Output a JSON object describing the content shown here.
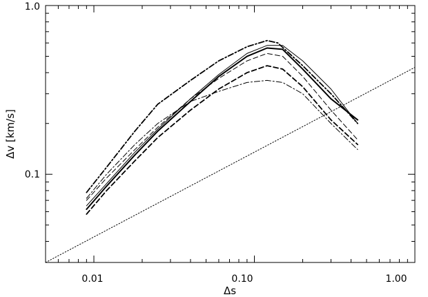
{
  "chart_data": {
    "type": "line",
    "title": "",
    "xlabel": "Δs",
    "ylabel": "Δv [km/s]",
    "xscale": "log",
    "yscale": "log",
    "xlim": [
      0.005,
      1.0
    ],
    "ylim": [
      0.03,
      1.0
    ],
    "x_tick_labels": [
      "0.01",
      "0.10",
      "1.00"
    ],
    "y_tick_labels": [
      "0.1",
      "1.0"
    ],
    "grid": false,
    "legend": "none",
    "series": [
      {
        "style": "solid",
        "width": 2.0,
        "x": [
          0.009,
          0.012,
          0.018,
          0.025,
          0.04,
          0.06,
          0.09,
          0.12,
          0.15,
          0.2,
          0.3,
          0.44
        ],
        "y": [
          0.062,
          0.085,
          0.13,
          0.18,
          0.27,
          0.38,
          0.5,
          0.56,
          0.55,
          0.42,
          0.28,
          0.21
        ]
      },
      {
        "style": "solid",
        "width": 1.0,
        "x": [
          0.009,
          0.012,
          0.018,
          0.025,
          0.04,
          0.06,
          0.09,
          0.12,
          0.15,
          0.2,
          0.3,
          0.44
        ],
        "y": [
          0.065,
          0.088,
          0.135,
          0.185,
          0.28,
          0.39,
          0.52,
          0.58,
          0.58,
          0.47,
          0.32,
          0.2
        ]
      },
      {
        "style": "dashdot",
        "width": 1.8,
        "x": [
          0.009,
          0.012,
          0.018,
          0.025,
          0.04,
          0.06,
          0.09,
          0.12,
          0.14,
          0.2,
          0.3,
          0.44
        ],
        "y": [
          0.078,
          0.11,
          0.18,
          0.26,
          0.36,
          0.47,
          0.57,
          0.62,
          0.6,
          0.44,
          0.3,
          0.2
        ]
      },
      {
        "style": "dashed",
        "width": 1.8,
        "x": [
          0.009,
          0.012,
          0.018,
          0.025,
          0.04,
          0.06,
          0.09,
          0.12,
          0.15,
          0.2,
          0.3,
          0.44
        ],
        "y": [
          0.058,
          0.08,
          0.12,
          0.165,
          0.24,
          0.32,
          0.4,
          0.44,
          0.42,
          0.33,
          0.21,
          0.15
        ]
      },
      {
        "style": "dashed",
        "width": 1.0,
        "x": [
          0.009,
          0.012,
          0.018,
          0.025,
          0.04,
          0.06,
          0.09,
          0.12,
          0.15,
          0.2,
          0.3,
          0.44
        ],
        "y": [
          0.07,
          0.095,
          0.14,
          0.19,
          0.28,
          0.37,
          0.47,
          0.52,
          0.5,
          0.38,
          0.24,
          0.16
        ]
      },
      {
        "style": "dashdot",
        "width": 1.0,
        "x": [
          0.009,
          0.012,
          0.018,
          0.025,
          0.04,
          0.06,
          0.09,
          0.12,
          0.15,
          0.2,
          0.3,
          0.44
        ],
        "y": [
          0.072,
          0.1,
          0.15,
          0.2,
          0.27,
          0.31,
          0.35,
          0.36,
          0.35,
          0.3,
          0.2,
          0.14
        ]
      },
      {
        "style": "dotted",
        "width": 1.0,
        "x": [
          0.005,
          1.0
        ],
        "y": [
          0.03,
          0.43
        ]
      }
    ]
  }
}
